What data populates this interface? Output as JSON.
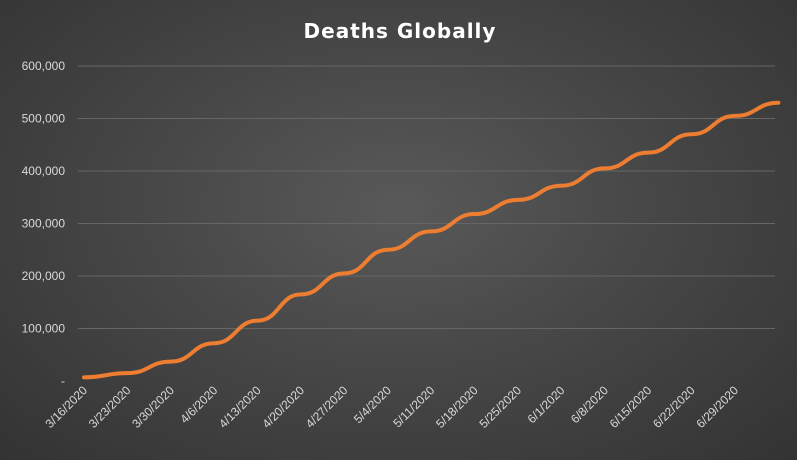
{
  "chart_data": {
    "type": "line",
    "title": "Deaths Globally",
    "xlabel": "",
    "ylabel": "",
    "ylim": [
      0,
      600000
    ],
    "grid": true,
    "y_tick_labels": [
      "-",
      "100,000",
      "200,000",
      "300,000",
      "400,000",
      "500,000",
      "600,000"
    ],
    "x_tick_labels": [
      "3/16/2020",
      "3/23/2020",
      "3/30/2020",
      "4/6/2020",
      "4/13/2020",
      "4/20/2020",
      "4/27/2020",
      "5/4/2020",
      "5/11/2020",
      "5/18/2020",
      "5/25/2020",
      "6/1/2020",
      "6/8/2020",
      "6/15/2020",
      "6/22/2020",
      "6/29/2020"
    ],
    "line_color": "#ed7d31",
    "x": [
      "3/16/2020",
      "3/23/2020",
      "3/30/2020",
      "4/6/2020",
      "4/13/2020",
      "4/20/2020",
      "4/27/2020",
      "5/4/2020",
      "5/11/2020",
      "5/18/2020",
      "5/25/2020",
      "6/1/2020",
      "6/8/2020",
      "6/15/2020",
      "6/22/2020",
      "6/29/2020",
      "7/6/2020"
    ],
    "series": [
      {
        "values": [
          7000,
          15000,
          37000,
          72000,
          115000,
          165000,
          205000,
          250000,
          285000,
          318000,
          345000,
          372000,
          405000,
          435000,
          470000,
          505000,
          530000
        ]
      }
    ]
  }
}
